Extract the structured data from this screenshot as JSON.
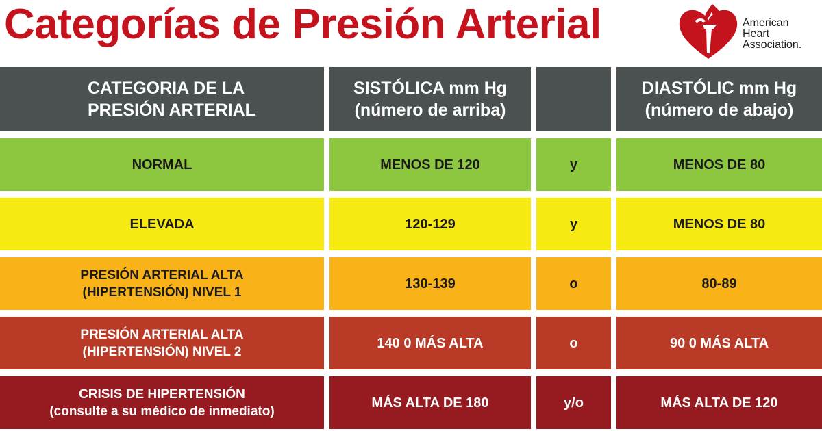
{
  "title": "Categorías de Presión Arterial",
  "logo": {
    "name": "American Heart Association heart-and-torch logo",
    "lines": [
      "American",
      "Heart",
      "Association."
    ],
    "color": "#c5131e"
  },
  "table": {
    "headers": {
      "category": [
        "CATEGORIA DE LA",
        "PRESIÓN ARTERIAL"
      ],
      "systolic": [
        "SISTÓLICA mm Hg",
        "(número de arriba)"
      ],
      "joiner": "",
      "diastolic": [
        "DIASTÓLIC mm Hg",
        "(número de abajo)"
      ]
    },
    "header_color": "#4b5050",
    "rows": [
      {
        "category": [
          "NORMAL"
        ],
        "systolic": "MENOS DE 120",
        "joiner": "y",
        "diastolic": "MENOS DE 80",
        "color": "#8dc63f"
      },
      {
        "category": [
          "ELEVADA"
        ],
        "systolic": "120-129",
        "joiner": "y",
        "diastolic": "MENOS DE 80",
        "color": "#f7ea13"
      },
      {
        "category": [
          "PRESIÓN ARTERIAL ALTA",
          "(HIPERTENSIÓN) NIVEL 1"
        ],
        "systolic": "130-139",
        "joiner": "o",
        "diastolic": "80-89",
        "color": "#f9b318"
      },
      {
        "category": [
          "PRESIÓN ARTERIAL ALTA",
          "(HIPERTENSIÓN) NIVEL 2"
        ],
        "systolic": "140 0 MÁS ALTA",
        "joiner": "o",
        "diastolic": "90 0 MÁS ALTA",
        "color": "#b93a26"
      },
      {
        "category": [
          "CRISIS DE HIPERTENSIÓN",
          "(consulte a su médico de inmediato)"
        ],
        "systolic": "MÁS ALTA DE 180",
        "joiner": "y/o",
        "diastolic": "MÁS ALTA DE 120",
        "color": "#951b20"
      }
    ]
  }
}
